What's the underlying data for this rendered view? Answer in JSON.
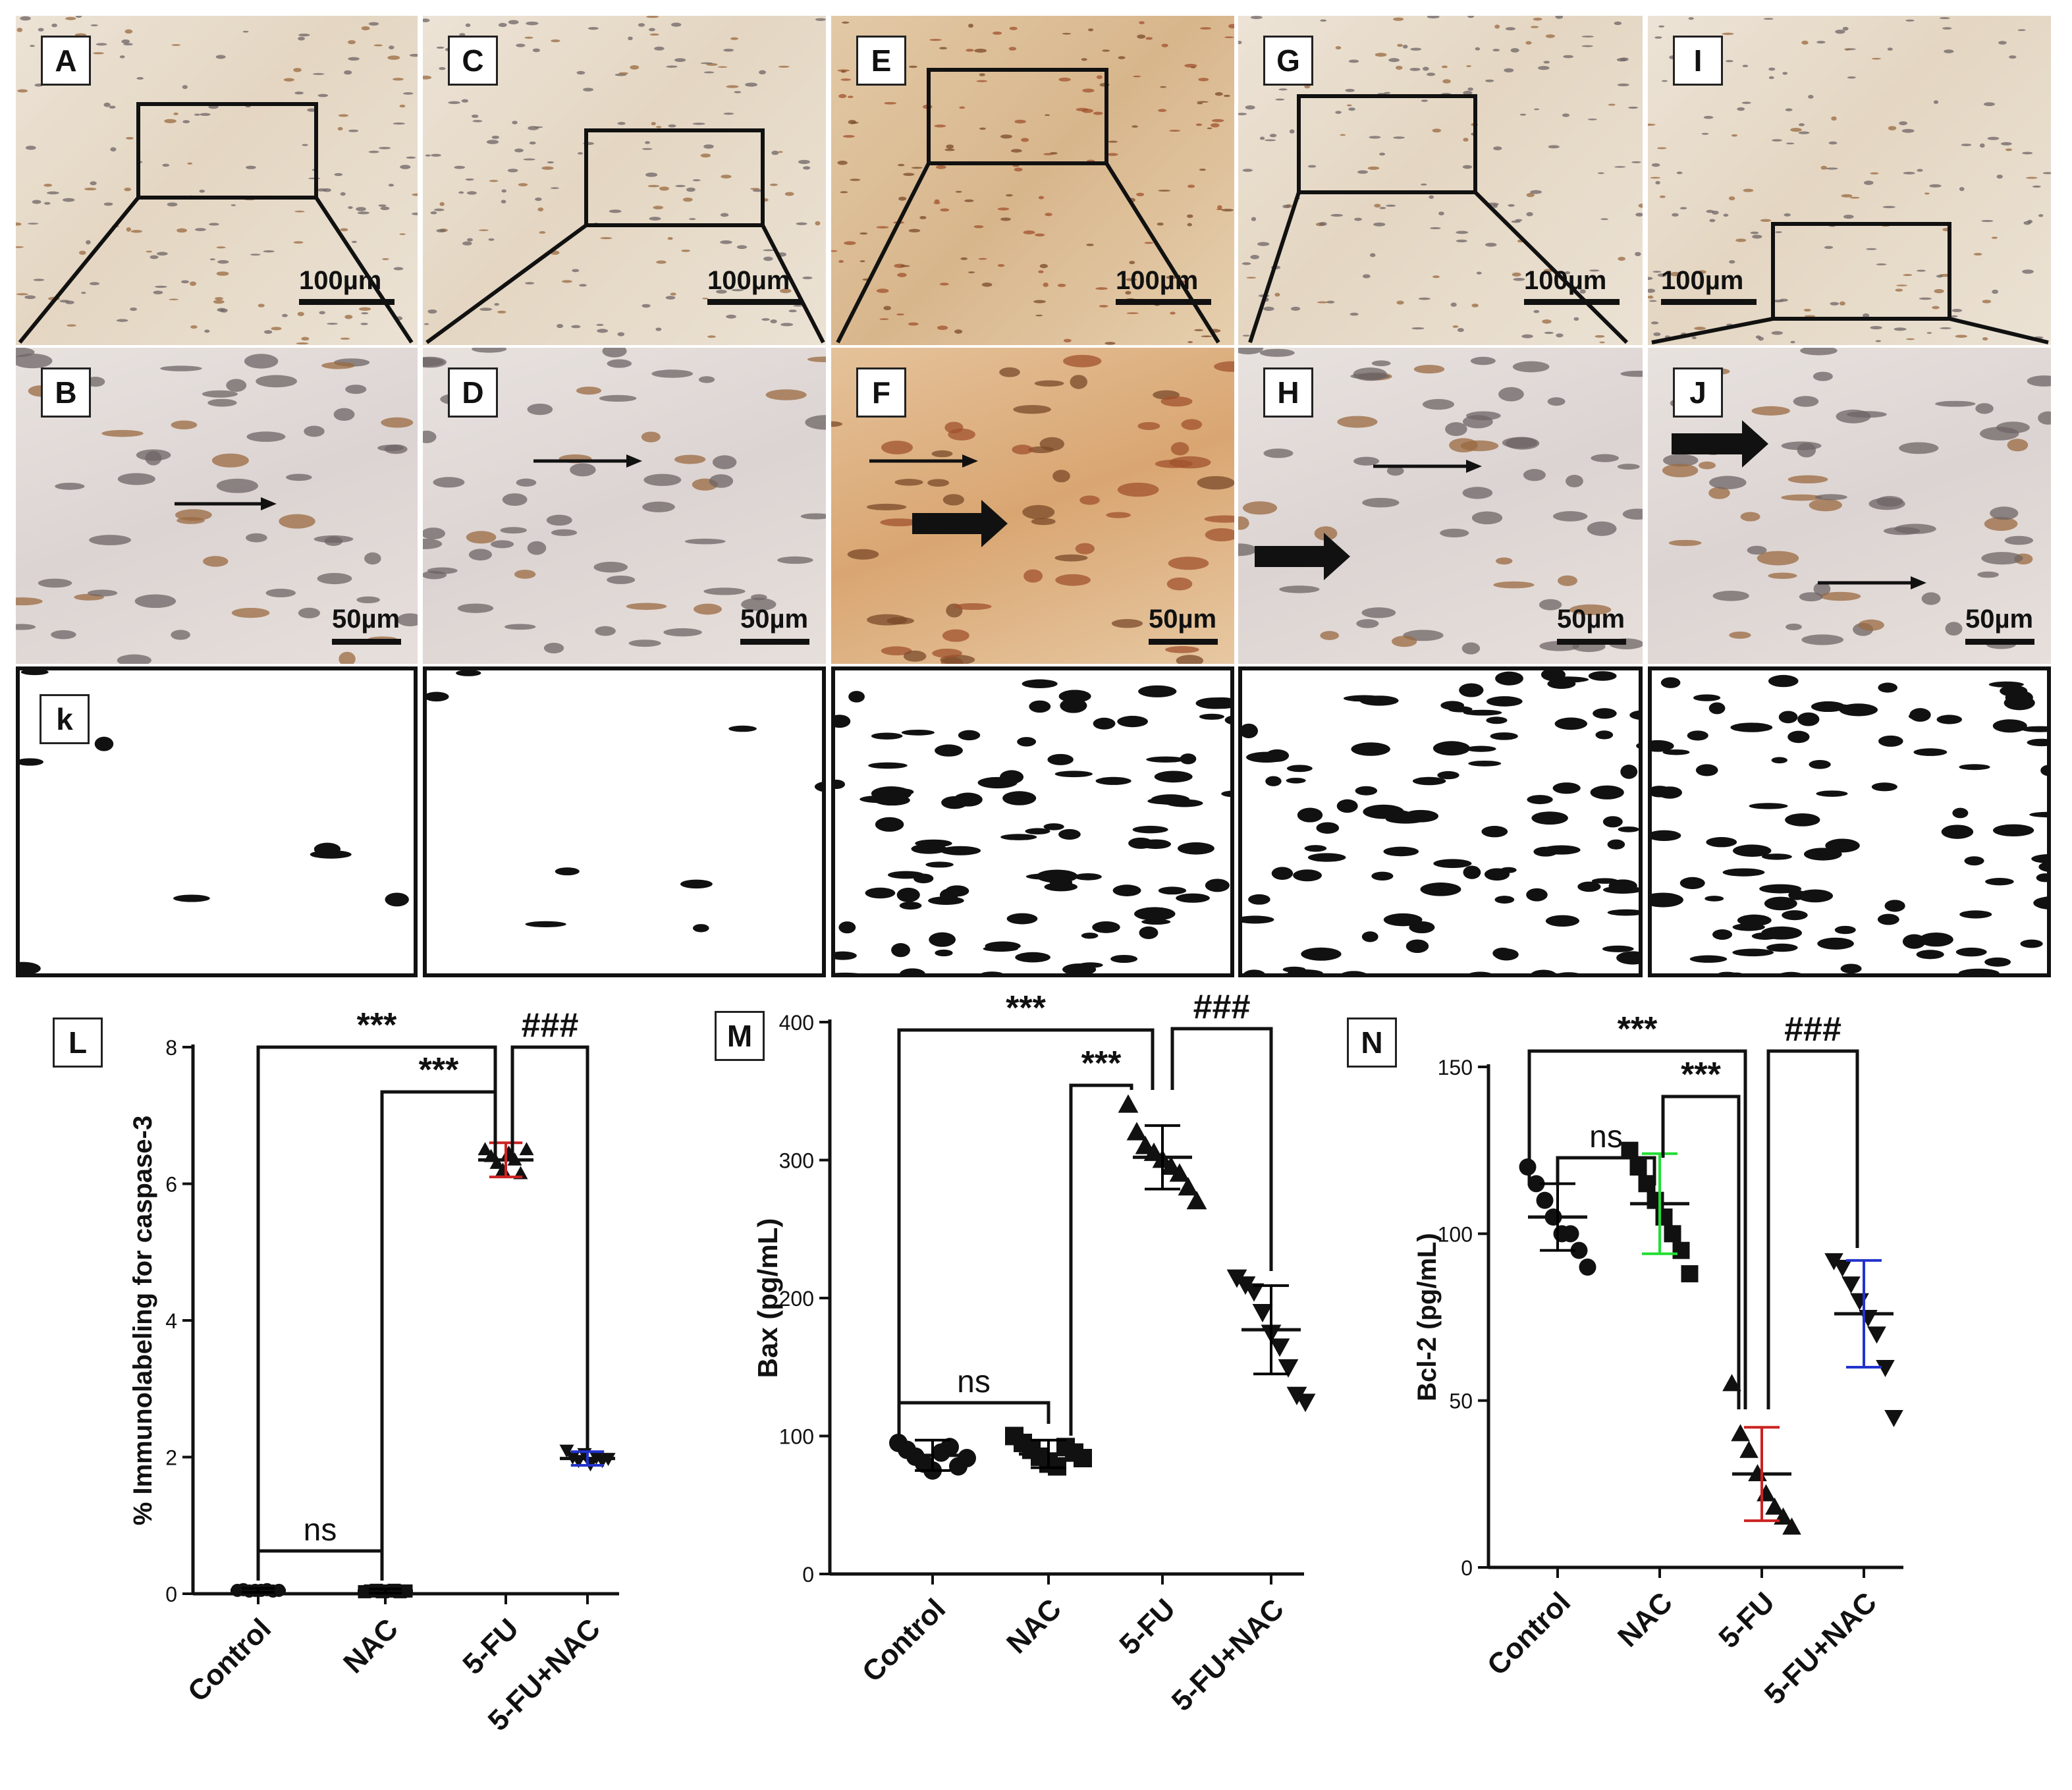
{
  "panels": {
    "top_row": [
      {
        "label": "A",
        "scale": "100µm",
        "tone": "light"
      },
      {
        "label": "C",
        "scale": "100µm",
        "tone": "light"
      },
      {
        "label": "E",
        "scale": "100µm",
        "tone": "dark"
      },
      {
        "label": "G",
        "scale": "100µm",
        "tone": "light"
      },
      {
        "label": "I",
        "scale": "100µm",
        "tone": "light"
      }
    ],
    "middle_row": [
      {
        "label": "B",
        "scale": "50µm",
        "tone": "light"
      },
      {
        "label": "D",
        "scale": "50µm",
        "tone": "light"
      },
      {
        "label": "F",
        "scale": "50µm",
        "tone": "dark"
      },
      {
        "label": "H",
        "scale": "50µm",
        "tone": "light"
      },
      {
        "label": "J",
        "scale": "50µm",
        "tone": "light"
      }
    ],
    "bottom_row": [
      {
        "label": "k"
      },
      {
        "label": ""
      },
      {
        "label": ""
      },
      {
        "label": ""
      },
      {
        "label": ""
      }
    ]
  },
  "chart_data": [
    {
      "panel": "L",
      "type": "scatter",
      "ylabel": "% Immunolabeling for caspase-3",
      "categories": [
        "Control",
        "NAC",
        "5-FU",
        "5-FU+NAC"
      ],
      "ylim": [
        0,
        8
      ],
      "yticks": [
        0,
        2,
        4,
        6,
        8
      ],
      "markers": [
        "circle",
        "square",
        "triangle-up",
        "triangle-down"
      ],
      "error_colors": [
        "#000000",
        "#000000",
        "#cc2222",
        "#2233cc"
      ],
      "means": [
        0.05,
        0.04,
        6.35,
        1.98
      ],
      "sds": [
        0.03,
        0.03,
        0.25,
        0.1
      ],
      "points": [
        [
          0.05,
          0.06,
          0.04,
          0.05,
          0.05,
          0.06,
          0.04,
          0.05
        ],
        [
          0.03,
          0.04,
          0.05,
          0.03,
          0.04,
          0.05,
          0.03,
          0.04
        ],
        [
          6.5,
          6.4,
          6.3,
          6.2,
          6.45,
          6.35,
          6.15,
          6.5
        ],
        [
          2.1,
          2.0,
          1.95,
          2.05,
          1.9,
          2.0,
          1.95,
          1.98
        ]
      ],
      "comparisons": [
        {
          "from": 0,
          "to": 1,
          "label": "ns"
        },
        {
          "from": 0,
          "to": 2,
          "label": "***"
        },
        {
          "from": 1,
          "to": 2,
          "label": "***"
        },
        {
          "from": 2,
          "to": 3,
          "label": "###"
        }
      ]
    },
    {
      "panel": "M",
      "type": "scatter",
      "ylabel": "Bax (pg/mL)",
      "categories": [
        "Control",
        "NAC",
        "5-FU",
        "5-FU+NAC"
      ],
      "ylim": [
        0,
        400
      ],
      "yticks": [
        0,
        100,
        200,
        300,
        400
      ],
      "markers": [
        "circle",
        "square",
        "triangle-up",
        "triangle-down"
      ],
      "error_colors": [
        "#000000",
        "#000000",
        "#000000",
        "#000000"
      ],
      "means": [
        86,
        87,
        302,
        177
      ],
      "sds": [
        11,
        10,
        23,
        32
      ],
      "points": [
        [
          95,
          90,
          85,
          80,
          75,
          88,
          92,
          78,
          84
        ],
        [
          100,
          95,
          90,
          85,
          80,
          78,
          92,
          88,
          84
        ],
        [
          340,
          320,
          310,
          305,
          300,
          295,
          290,
          280,
          270
        ],
        [
          215,
          210,
          205,
          190,
          175,
          165,
          150,
          130,
          125
        ]
      ],
      "comparisons": [
        {
          "from": 0,
          "to": 1,
          "label": "ns"
        },
        {
          "from": 0,
          "to": 2,
          "label": "***"
        },
        {
          "from": 1,
          "to": 2,
          "label": "***"
        },
        {
          "from": 2,
          "to": 3,
          "label": "###"
        }
      ]
    },
    {
      "panel": "N",
      "type": "scatter",
      "ylabel": "Bcl-2 (pg/mL)",
      "categories": [
        "Control",
        "NAC",
        "5-FU",
        "5-FU+NAC"
      ],
      "ylim": [
        0,
        150
      ],
      "yticks": [
        0,
        50,
        100,
        150
      ],
      "markers": [
        "circle",
        "square",
        "triangle-up",
        "triangle-down"
      ],
      "error_colors": [
        "#000000",
        "#22dd33",
        "#cc2222",
        "#2233cc"
      ],
      "means": [
        105,
        109,
        28,
        76
      ],
      "sds": [
        10,
        15,
        14,
        16
      ],
      "points": [
        [
          120,
          115,
          110,
          105,
          100,
          100,
          95,
          90
        ],
        [
          125,
          120,
          115,
          110,
          105,
          100,
          95,
          88
        ],
        [
          55,
          40,
          35,
          28,
          22,
          18,
          15,
          12
        ],
        [
          92,
          90,
          85,
          80,
          75,
          70,
          60,
          45
        ]
      ],
      "comparisons": [
        {
          "from": 0,
          "to": 1,
          "label": "ns"
        },
        {
          "from": 0,
          "to": 2,
          "label": "***"
        },
        {
          "from": 1,
          "to": 2,
          "label": "***"
        },
        {
          "from": 2,
          "to": 3,
          "label": "###"
        }
      ]
    }
  ]
}
